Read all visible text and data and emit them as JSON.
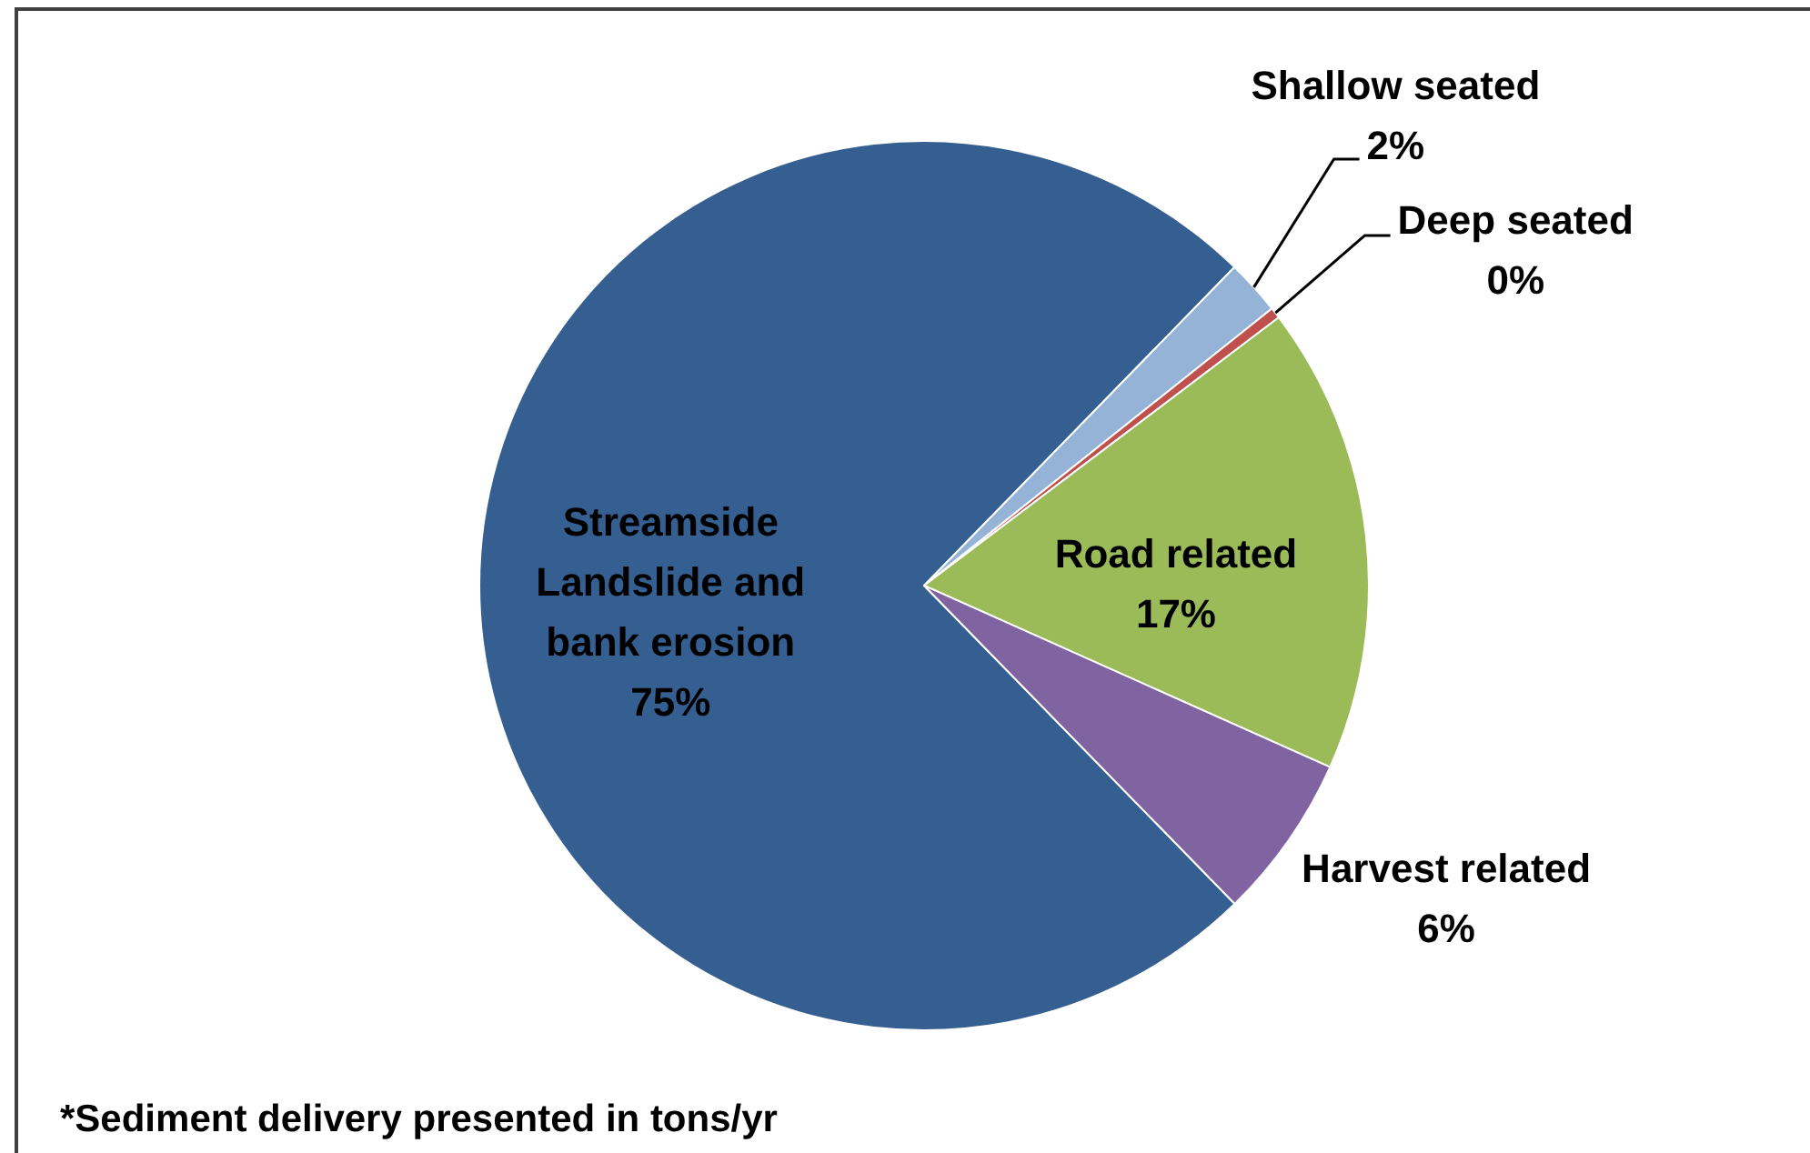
{
  "chart_data": {
    "type": "pie",
    "categories": [
      "Streamside Landslide and bank erosion",
      "Shallow seated",
      "Deep seated",
      "Road related",
      "Harvest related"
    ],
    "values": [
      74.6,
      2,
      0.4,
      17,
      6
    ],
    "colors": [
      "#365f91",
      "#95b3d7",
      "#c0504d",
      "#9bbb59",
      "#8064a2"
    ],
    "value_labels": [
      "75%",
      "2%",
      "0%",
      "17%",
      "6%"
    ],
    "annotations": [
      "*Sediment delivery presented in tons/yr"
    ]
  }
}
